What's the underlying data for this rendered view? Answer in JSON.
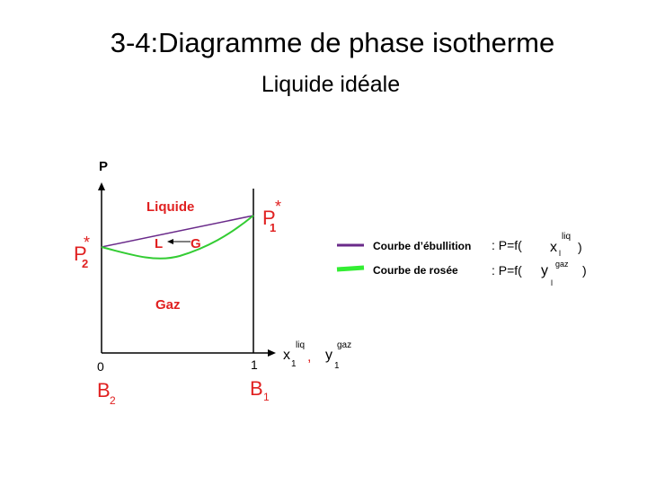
{
  "title": "3-4:Diagramme de phase isotherme",
  "subtitle": "Liquide idéale",
  "diagram": {
    "axis_y_label": "P",
    "region_liquid": "Liquide",
    "region_gas": "Gaz",
    "arrow_left": "L",
    "arrow_right": "G",
    "p1": {
      "base": "P",
      "sup": "*",
      "sub": "1"
    },
    "p2": {
      "base": "P",
      "sup": "*",
      "sub": "2"
    },
    "x_origin": "0",
    "x_end": "1",
    "x_label": {
      "base": "x",
      "sup": "liq",
      "sub": "1"
    },
    "separator": ",",
    "y_label": {
      "base": "y",
      "sup": "gaz",
      "sub": "1"
    },
    "b2": {
      "base": "B",
      "sub": "2"
    },
    "b1": {
      "base": "B",
      "sub": "1"
    }
  },
  "legend": [
    {
      "label": "Courbe d’ébullition",
      "formula": ": P=f(",
      "var": {
        "base": "x",
        "sup": "liq",
        "sub": "l"
      },
      "close": ")"
    },
    {
      "label": "Courbe de rosée",
      "formula": ": P=f(",
      "var": {
        "base": "y",
        "sup": "gaz",
        "sub": "l"
      },
      "close": ")"
    }
  ]
}
